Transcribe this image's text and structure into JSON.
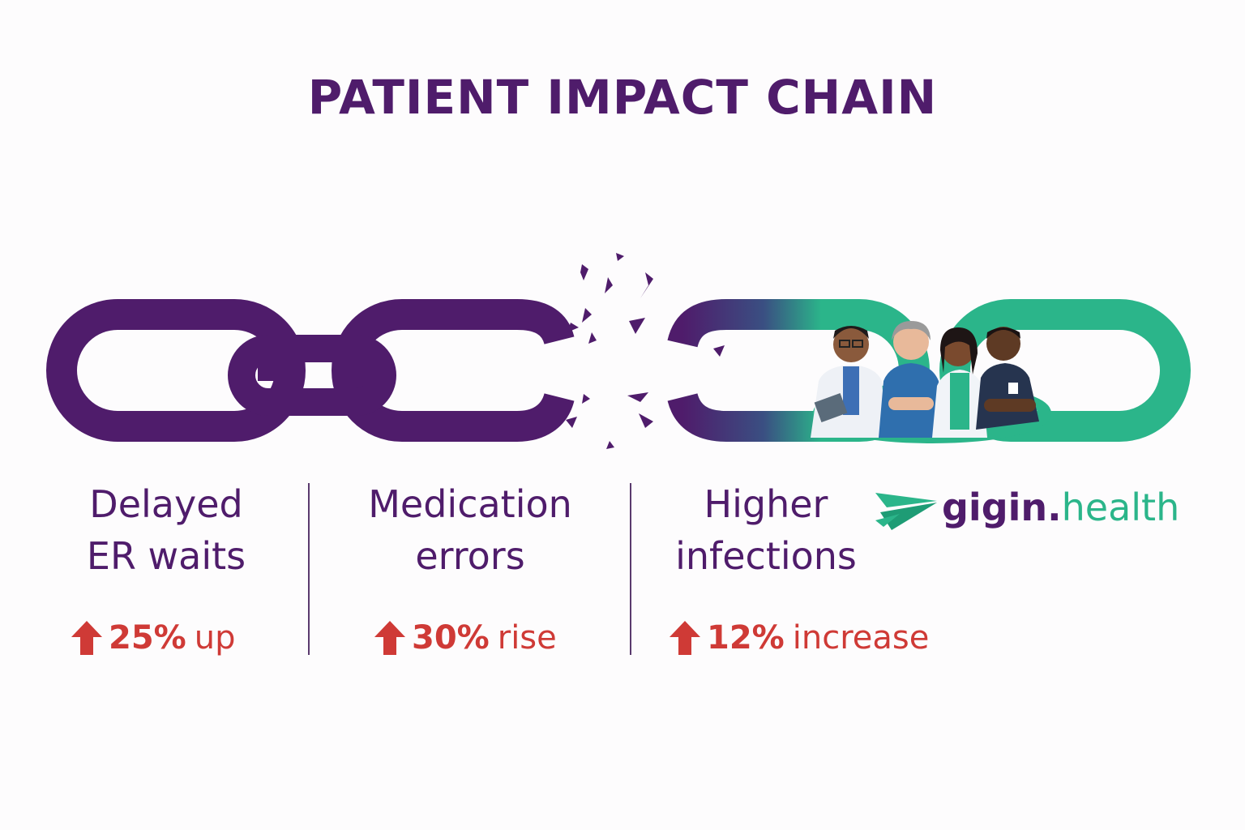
{
  "title": "PATIENT IMPACT CHAIN",
  "colors": {
    "purple": "#4f1c6b",
    "teal": "#2bb58a",
    "alert_red": "#cf3a36"
  },
  "columns": [
    {
      "label_line1": "Delayed",
      "label_line2": "ER waits",
      "stat_icon": "arrow-up-icon",
      "stat_value": "25%",
      "stat_word": "up"
    },
    {
      "label_line1": "Medication",
      "label_line2": "errors",
      "stat_icon": "arrow-up-icon",
      "stat_value": "30%",
      "stat_word": "rise"
    },
    {
      "label_line1": "Higher",
      "label_line2": "infections",
      "stat_icon": "arrow-up-icon",
      "stat_value": "12%",
      "stat_word": "increase"
    }
  ],
  "logo": {
    "icon": "paper-plane-icon",
    "wordmark_part1": "gigin.",
    "wordmark_part2": "health"
  },
  "illustration": {
    "subject": "broken-chain-with-healthcare-team"
  }
}
